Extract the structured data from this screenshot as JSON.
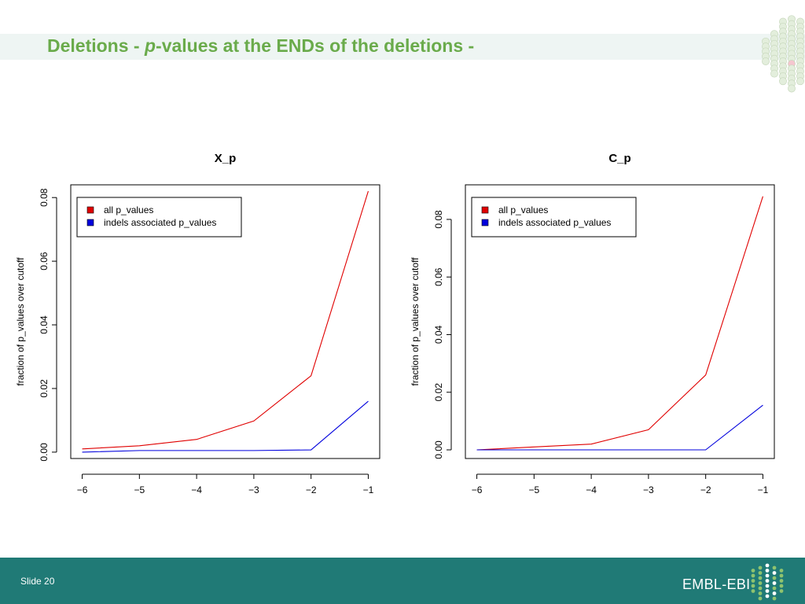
{
  "slide": {
    "title_prefix": "Deletions - ",
    "title_italic": "p",
    "title_suffix": "-values at the ENDs of the deletions -",
    "slide_number": "Slide 20",
    "brand": "EMBL-EBI",
    "colors": {
      "title": "#6aab4b",
      "footer": "#207a76",
      "band": "#eef5f3"
    },
    "icons": {
      "corner": "hexagon-dot-cluster-icon",
      "brand_logo": "embl-ebi-logo-icon"
    }
  },
  "chart_data": [
    {
      "type": "line",
      "title": "X_p",
      "xlabel": "",
      "ylabel": "fraction of p_values over cutoff",
      "x": [
        -6,
        -5,
        -4,
        -3,
        -2,
        -1
      ],
      "xticks": [
        "−6",
        "−5",
        "−4",
        "−3",
        "−2",
        "−1"
      ],
      "yticks": [
        "0.00",
        "0.02",
        "0.04",
        "0.06",
        "0.08"
      ],
      "xlim": [
        -6.2,
        -0.8
      ],
      "ylim": [
        -0.002,
        0.084
      ],
      "legend_position": "top-left",
      "series": [
        {
          "name": "all p_values",
          "color": "#e00000",
          "values": [
            0.001,
            0.002,
            0.004,
            0.0098,
            0.024,
            0.082
          ]
        },
        {
          "name": "indels associated  p_values",
          "color": "#0000dd",
          "values": [
            0.0,
            0.0005,
            0.0005,
            0.0005,
            0.0007,
            0.016
          ]
        }
      ]
    },
    {
      "type": "line",
      "title": "C_p",
      "xlabel": "",
      "ylabel": "fraction of p_values over cutoff",
      "x": [
        -6,
        -5,
        -4,
        -3,
        -2,
        -1
      ],
      "xticks": [
        "−6",
        "−5",
        "−4",
        "−3",
        "−2",
        "−1"
      ],
      "yticks": [
        "0.00",
        "0.02",
        "0.04",
        "0.06",
        "0.08"
      ],
      "xlim": [
        -6.2,
        -0.8
      ],
      "ylim": [
        -0.003,
        0.092
      ],
      "legend_position": "top-left",
      "series": [
        {
          "name": "all p_values",
          "color": "#e00000",
          "values": [
            0.0,
            0.001,
            0.002,
            0.007,
            0.026,
            0.088
          ]
        },
        {
          "name": "indels associated  p_values",
          "color": "#0000dd",
          "values": [
            0.0,
            0.0,
            0.0,
            0.0,
            0.0,
            0.0155
          ]
        }
      ]
    }
  ]
}
